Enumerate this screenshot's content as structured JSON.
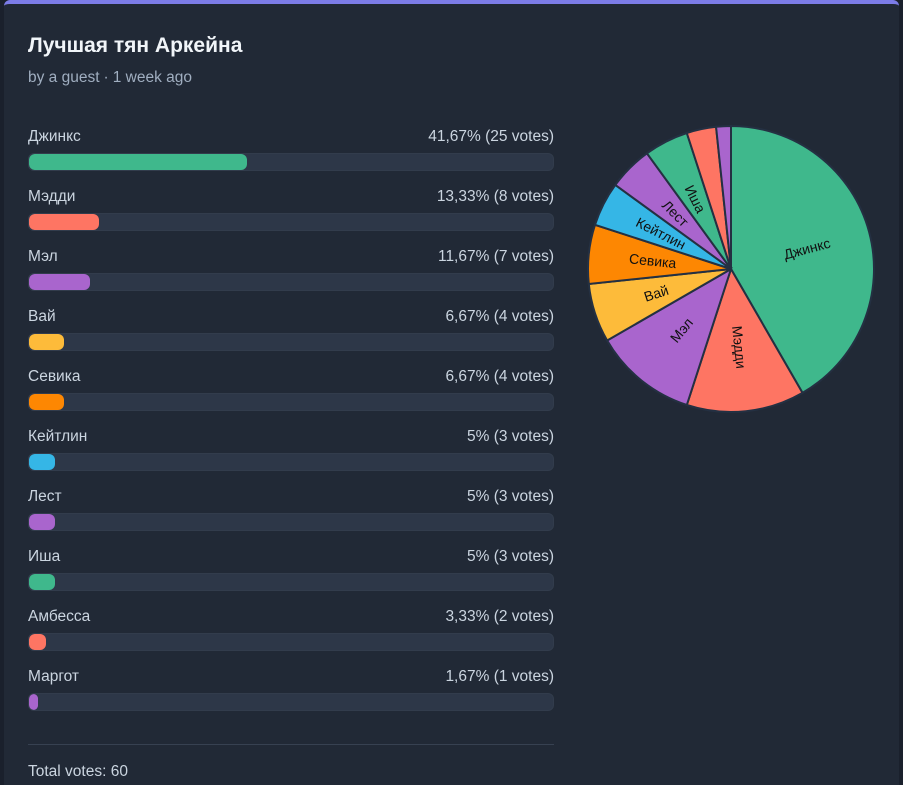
{
  "poll": {
    "title": "Лучшая тян Аркейна",
    "author": "by a guest",
    "separator": "·",
    "time": "1 week ago",
    "total_label": "Total votes: 60"
  },
  "options": [
    {
      "label": "Джинкс",
      "percent_text": "41,67% (25 votes)",
      "votes": 25,
      "fraction": 0.4167,
      "color": "#3fb88c"
    },
    {
      "label": "Мэдди",
      "percent_text": "13,33% (8 votes)",
      "votes": 8,
      "fraction": 0.1333,
      "color": "#fe7563"
    },
    {
      "label": "Мэл",
      "percent_text": "11,67% (7 votes)",
      "votes": 7,
      "fraction": 0.1167,
      "color": "#a965cd"
    },
    {
      "label": "Вай",
      "percent_text": "6,67% (4 votes)",
      "votes": 4,
      "fraction": 0.0667,
      "color": "#fdbb3a"
    },
    {
      "label": "Севика",
      "percent_text": "6,67% (4 votes)",
      "votes": 4,
      "fraction": 0.0667,
      "color": "#fd8702"
    },
    {
      "label": "Кейтлин",
      "percent_text": "5% (3 votes)",
      "votes": 3,
      "fraction": 0.05,
      "color": "#35b6e6"
    },
    {
      "label": "Лест",
      "percent_text": "5% (3 votes)",
      "votes": 3,
      "fraction": 0.05,
      "color": "#a965cd"
    },
    {
      "label": "Иша",
      "percent_text": "5% (3 votes)",
      "votes": 3,
      "fraction": 0.05,
      "color": "#3fb88c"
    },
    {
      "label": "Амбесса",
      "percent_text": "3,33% (2 votes)",
      "votes": 2,
      "fraction": 0.0333,
      "color": "#fe7563"
    },
    {
      "label": "Маргот",
      "percent_text": "1,67% (1 votes)",
      "votes": 1,
      "fraction": 0.0167,
      "color": "#a965cd"
    }
  ],
  "chart_data": {
    "type": "pie",
    "categories": [
      "Джинкс",
      "Мэдди",
      "Мэл",
      "Вай",
      "Севика",
      "Кейтлин",
      "Лест",
      "Иша",
      "Амбесса",
      "Маргот"
    ],
    "values": [
      25,
      8,
      7,
      4,
      4,
      3,
      3,
      3,
      2,
      1
    ],
    "slice_labels": [
      "Джинкс",
      "Мэдди",
      "Мэл",
      "Вай",
      "Севика",
      "Кейтлин",
      "Лест",
      "Иша",
      "",
      ""
    ],
    "colors": [
      "#3fb88c",
      "#fe7563",
      "#a965cd",
      "#fdbb3a",
      "#fd8702",
      "#35b6e6",
      "#a965cd",
      "#3fb88c",
      "#fe7563",
      "#a965cd"
    ]
  }
}
